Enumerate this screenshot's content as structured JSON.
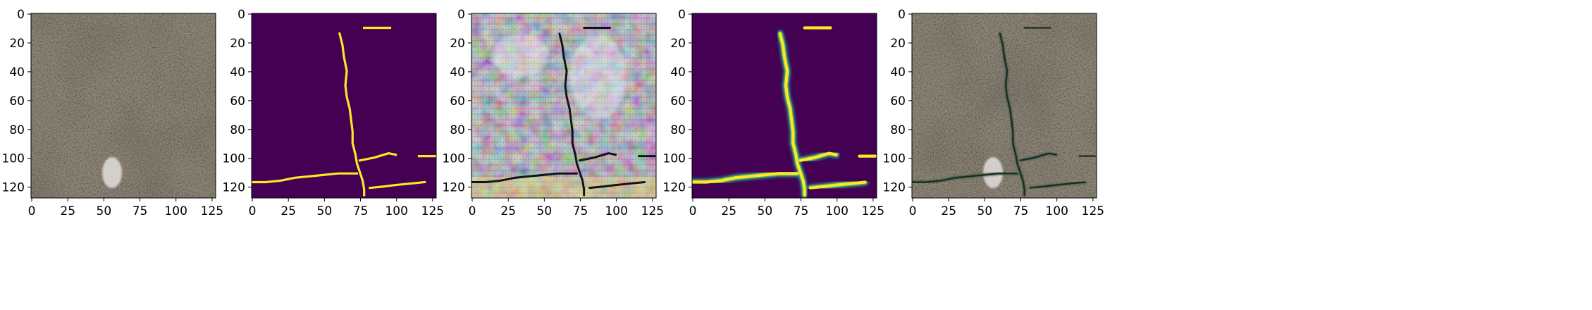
{
  "chart_data": [
    {
      "type": "image",
      "content": "rgb-pavement-photo",
      "xlim": [
        0,
        128
      ],
      "ylim": [
        128,
        0
      ],
      "xticks": [
        "0",
        "25",
        "50",
        "75",
        "100",
        "125"
      ],
      "yticks": [
        "0",
        "20",
        "40",
        "60",
        "80",
        "100",
        "120"
      ]
    },
    {
      "type": "heatmap",
      "content": "binary-crack-mask",
      "colormap": "viridis",
      "xlim": [
        0,
        128
      ],
      "ylim": [
        128,
        0
      ],
      "xticks": [
        "0",
        "25",
        "50",
        "75",
        "100",
        "125"
      ],
      "yticks": [
        "0",
        "20",
        "40",
        "60",
        "80",
        "100",
        "120"
      ]
    },
    {
      "type": "image",
      "content": "rgb-feature-visualization",
      "xlim": [
        0,
        128
      ],
      "ylim": [
        128,
        0
      ],
      "xticks": [
        "0",
        "25",
        "50",
        "75",
        "100",
        "125"
      ],
      "yticks": [
        "0",
        "20",
        "40",
        "60",
        "80",
        "100",
        "120"
      ]
    },
    {
      "type": "heatmap",
      "content": "predicted-crack-probability",
      "colormap": "viridis",
      "xlim": [
        0,
        128
      ],
      "ylim": [
        128,
        0
      ],
      "xticks": [
        "0",
        "25",
        "50",
        "75",
        "100",
        "125"
      ],
      "yticks": [
        "0",
        "20",
        "40",
        "60",
        "80",
        "100",
        "120"
      ]
    },
    {
      "type": "image",
      "content": "rgb-photo-with-crack-overlay",
      "xlim": [
        0,
        128
      ],
      "ylim": [
        128,
        0
      ],
      "xticks": [
        "0",
        "25",
        "50",
        "75",
        "100",
        "125"
      ],
      "yticks": [
        "0",
        "20",
        "40",
        "60",
        "80",
        "100",
        "120"
      ]
    }
  ],
  "crack_paths": {
    "main_vertical": [
      [
        61,
        14
      ],
      [
        63,
        22
      ],
      [
        64,
        30
      ],
      [
        66,
        40
      ],
      [
        65,
        50
      ],
      [
        66,
        58
      ],
      [
        68,
        66
      ],
      [
        69,
        74
      ],
      [
        70,
        82
      ],
      [
        70,
        90
      ],
      [
        72,
        98
      ],
      [
        73,
        104
      ],
      [
        75,
        110
      ],
      [
        77,
        116
      ],
      [
        78,
        122
      ],
      [
        78,
        126
      ]
    ],
    "horizontal": [
      [
        0,
        117
      ],
      [
        10,
        117
      ],
      [
        20,
        116
      ],
      [
        30,
        114
      ],
      [
        40,
        113
      ],
      [
        50,
        112
      ],
      [
        60,
        111
      ],
      [
        67,
        111
      ],
      [
        73,
        111
      ]
    ],
    "right_upper": [
      [
        75,
        102
      ],
      [
        85,
        100
      ],
      [
        95,
        97
      ],
      [
        100,
        98
      ]
    ],
    "right_far": [
      [
        116,
        99
      ],
      [
        127,
        99
      ]
    ],
    "right_lower": [
      [
        82,
        121
      ],
      [
        92,
        120
      ],
      [
        100,
        119
      ],
      [
        110,
        118
      ],
      [
        120,
        117
      ]
    ],
    "top_segment": [
      [
        78,
        10
      ],
      [
        96,
        10
      ]
    ]
  },
  "colors": {
    "viridis_low": "#440154",
    "viridis_high": "#fde725",
    "pavement_base": "#8f8778",
    "pavement_dark": "#5f584c",
    "pavement_light": "#b9b1a3",
    "crack_dark": "#1c2a22"
  }
}
